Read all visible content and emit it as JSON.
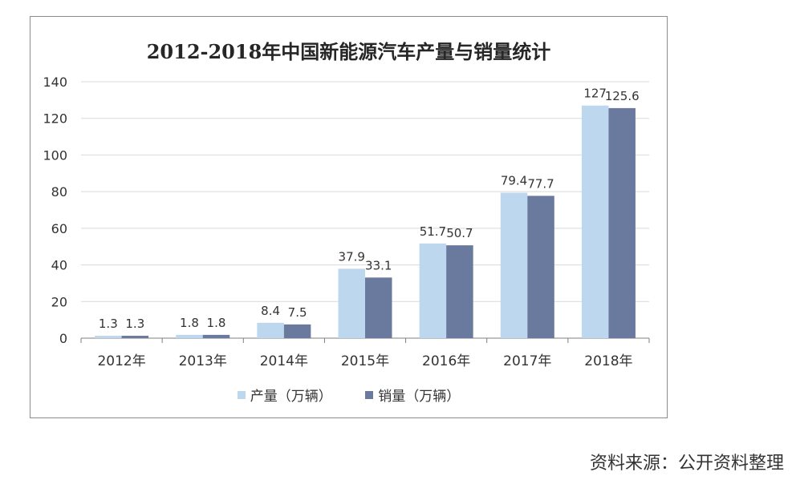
{
  "chart_data": {
    "type": "bar",
    "title": "2012-2018年中国新能源汽车产量与销量统计",
    "categories": [
      "2012年",
      "2013年",
      "2014年",
      "2015年",
      "2016年",
      "2017年",
      "2018年"
    ],
    "series": [
      {
        "name": "产量（万辆）",
        "values": [
          1.3,
          1.8,
          8.4,
          37.9,
          51.7,
          79.4,
          127
        ],
        "labels": [
          "1.3",
          "1.8",
          "8.4",
          "37.9",
          "51.7",
          "79.4",
          "127"
        ],
        "color": "#BDD7EE"
      },
      {
        "name": "销量（万辆）",
        "values": [
          1.3,
          1.8,
          7.5,
          33.1,
          50.7,
          77.7,
          125.6
        ],
        "labels": [
          "1.3",
          "1.8",
          "7.5",
          "33.1",
          "50.7",
          "77.7",
          "125.6"
        ],
        "color": "#697A9E"
      }
    ],
    "ylim": [
      0,
      140
    ],
    "yticks": [
      "0",
      "20",
      "40",
      "60",
      "80",
      "100",
      "120",
      "140"
    ],
    "grid": true,
    "legend_position": "bottom",
    "gridline_color": "#d9d9d9",
    "axis_color": "#7f7f7f"
  },
  "source_note": "资料来源：公开资料整理"
}
